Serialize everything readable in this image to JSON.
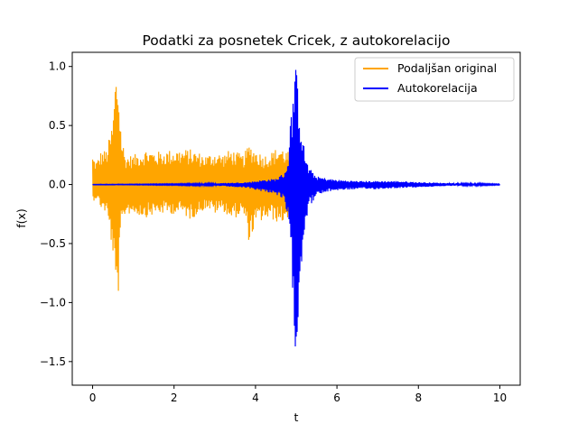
{
  "chart_data": {
    "type": "line",
    "title": "Podatki za posnetek Cricek, z autokorelacijo",
    "xlabel": "t",
    "ylabel": "f(x)",
    "xlim": [
      -0.5,
      10.5
    ],
    "ylim": [
      -1.7,
      1.12
    ],
    "xticks": [
      0,
      2,
      4,
      6,
      8,
      10
    ],
    "xtick_labels": [
      "0",
      "2",
      "4",
      "6",
      "8",
      "10"
    ],
    "yticks": [
      1.0,
      0.5,
      0.0,
      -0.5,
      -1.0,
      -1.5
    ],
    "ytick_labels": [
      "1.0",
      "0.5",
      "0.0",
      "−0.5",
      "−1.0",
      "−1.5"
    ],
    "grid": false,
    "legend_position": "top-right",
    "series": [
      {
        "name": "Podaljšan original",
        "color": "#ffa500",
        "x_range": [
          0,
          5
        ],
        "envelope": {
          "t": [
            0,
            0.05,
            0.1,
            0.2,
            0.35,
            0.5,
            0.55,
            0.6,
            0.65,
            0.7,
            0.8,
            1.0,
            1.3,
            1.6,
            2.0,
            2.2,
            2.4,
            2.8,
            3.0,
            3.2,
            3.4,
            3.7,
            3.85,
            4.0,
            4.2,
            4.4,
            4.6,
            4.8,
            4.95,
            5.0
          ],
          "upper": [
            0.25,
            0.22,
            0.2,
            0.28,
            0.3,
            0.55,
            0.9,
            1.0,
            0.8,
            0.45,
            0.25,
            0.25,
            0.3,
            0.28,
            0.3,
            0.3,
            0.3,
            0.25,
            0.28,
            0.26,
            0.3,
            0.25,
            0.35,
            0.3,
            0.25,
            0.28,
            0.33,
            0.28,
            0.25,
            0.0
          ],
          "lower": [
            -0.15,
            -0.13,
            -0.12,
            -0.2,
            -0.25,
            -0.6,
            -0.95,
            -1.07,
            -0.85,
            -0.4,
            -0.25,
            -0.25,
            -0.28,
            -0.25,
            -0.25,
            -0.25,
            -0.3,
            -0.2,
            -0.25,
            -0.22,
            -0.3,
            -0.25,
            -0.5,
            -0.35,
            -0.3,
            -0.3,
            -0.33,
            -0.3,
            -0.3,
            0.0
          ]
        }
      },
      {
        "name": "Autokorelacija",
        "color": "#0000ff",
        "x_range": [
          0,
          10
        ],
        "envelope": {
          "t": [
            0,
            1.0,
            2.0,
            3.0,
            3.8,
            4.2,
            4.5,
            4.7,
            4.8,
            4.85,
            4.9,
            4.95,
            5.0,
            5.05,
            5.1,
            5.2,
            5.3,
            5.5,
            5.8,
            6.0,
            6.5,
            7.0,
            7.5,
            8.0,
            8.5,
            9.0,
            9.5,
            10.0
          ],
          "upper": [
            0.002,
            0.003,
            0.005,
            0.01,
            0.02,
            0.04,
            0.05,
            0.1,
            0.2,
            0.5,
            0.7,
            0.95,
            1.0,
            0.85,
            0.6,
            0.3,
            0.15,
            0.07,
            0.05,
            0.04,
            0.03,
            0.03,
            0.03,
            0.02,
            0.015,
            0.01,
            0.008,
            0.004
          ],
          "lower": [
            -0.002,
            -0.003,
            -0.005,
            -0.01,
            -0.03,
            -0.06,
            -0.08,
            -0.15,
            -0.3,
            -0.6,
            -0.85,
            -1.15,
            -1.58,
            -1.2,
            -0.8,
            -0.4,
            -0.2,
            -0.1,
            -0.06,
            -0.05,
            -0.04,
            -0.04,
            -0.03,
            -0.025,
            -0.015,
            -0.01,
            -0.008,
            -0.004
          ]
        }
      }
    ]
  }
}
